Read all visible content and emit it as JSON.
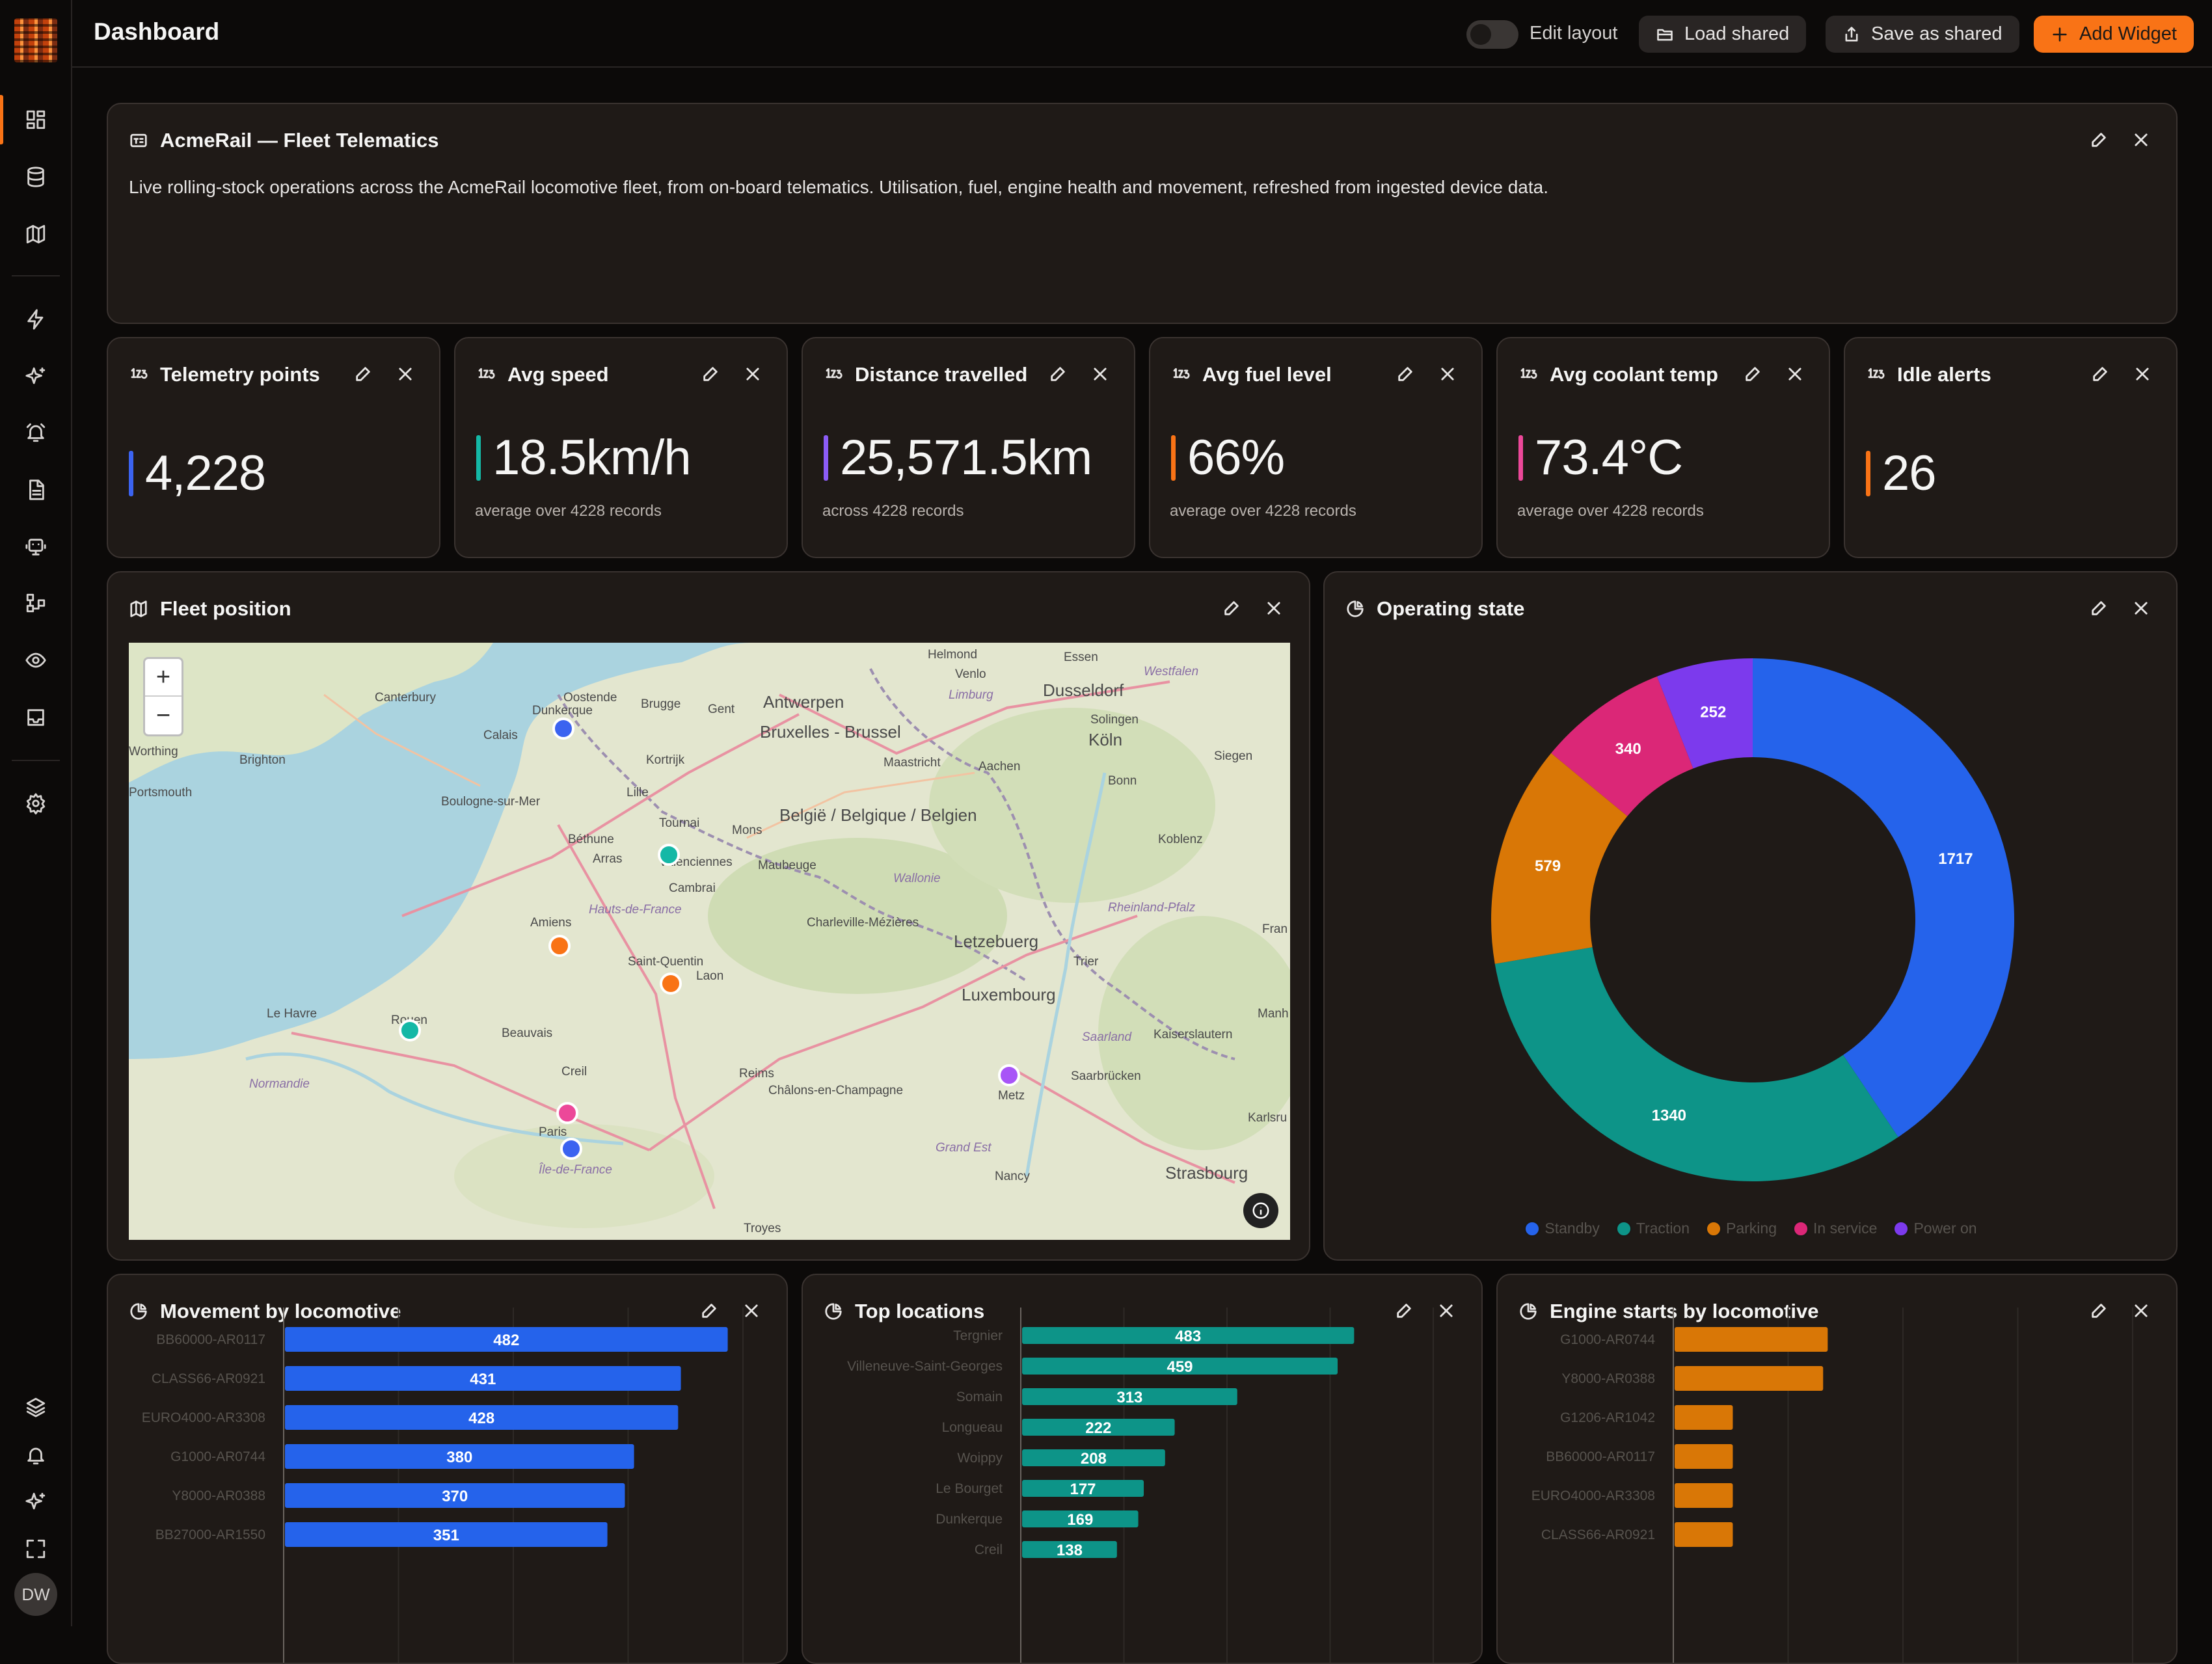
{
  "header": {
    "title": "Dashboard",
    "edit_layout": "Edit layout",
    "load_shared": "Load shared",
    "save_shared": "Save as shared",
    "add_widget": "Add Widget"
  },
  "sidebar": {
    "avatar": "DW",
    "items": [
      "dashboard-icon",
      "database-icon",
      "map-icon",
      "bolt-icon",
      "sparkles-icon",
      "alarm-icon",
      "document-icon",
      "robot-icon",
      "workflow-icon",
      "eye-icon",
      "inbox-icon",
      "gear-icon",
      "layers-icon",
      "bell-icon",
      "sparkles-icon",
      "fullscreen-icon"
    ]
  },
  "intro": {
    "title": "AcmeRail — Fleet Telematics",
    "description": "Live rolling-stock operations across the AcmeRail locomotive fleet, from on-board telematics. Utilisation, fuel, engine health and movement, refreshed from ingested device data."
  },
  "kpis": [
    {
      "title": "Telemetry points",
      "value": "4,228",
      "sub": "",
      "color": "#3b63f0"
    },
    {
      "title": "Avg speed",
      "value": "18.5km/h",
      "sub": "average over 4228 records",
      "color": "#14b8a6"
    },
    {
      "title": "Distance travelled",
      "value": "25,571.5km",
      "sub": "across 4228 records",
      "color": "#8b5cf6"
    },
    {
      "title": "Avg fuel level",
      "value": "66%",
      "sub": "average over 4228 records",
      "color": "#f97316"
    },
    {
      "title": "Avg coolant temp",
      "value": "73.4°C",
      "sub": "average over 4228 records",
      "color": "#ec4899"
    },
    {
      "title": "Idle alerts",
      "value": "26",
      "sub": "",
      "color": "#f97316"
    }
  ],
  "map": {
    "title": "Fleet position",
    "zoom_in": "+",
    "zoom_out": "−",
    "labels": [
      "Canterbury",
      "Oostende",
      "Brugge",
      "Antwerpen",
      "Essen",
      "Dusseldorf",
      "Brighton",
      "Calais",
      "Dunkerque",
      "Gent",
      "Bruxelles - Brussel",
      "Solingen",
      "Köln",
      "Siegen",
      "Boulogne-sur-Mer",
      "Kortrijk",
      "Maastricht",
      "Aachen",
      "Bonn",
      "Lille",
      "Tournai",
      "Mons",
      "België / Belgique / Belgien",
      "Béthune",
      "Arras",
      "Valenciennes",
      "Maubeuge",
      "Wallonie",
      "Koblenz",
      "Cambrai",
      "Hauts-de-France",
      "Amiens",
      "Saint-Quentin",
      "Charleville-Mézières",
      "Letzebuerg",
      "Rheinland-Pfalz",
      "Trier",
      "Laon",
      "Le Havre",
      "Rouen",
      "Luxembourg",
      "Beauvais",
      "Saarland",
      "Kaiserslautern",
      "Creil",
      "Reims",
      "Normandie",
      "Châlons-en-Champagne",
      "Metz",
      "Saarbrücken",
      "Paris",
      "Île-de-France",
      "Grand Est",
      "Nancy",
      "Strasbourg",
      "Troyes",
      "Helmond",
      "Venlo",
      "Limburg",
      "Westfalen",
      "Manh",
      "Karlsru",
      "Fran",
      "Worthing",
      "Portsmouth"
    ],
    "markers": [
      {
        "name": "Dunkerque",
        "color": "#3b63f0"
      },
      {
        "name": "Valenciennes",
        "color": "#14b8a6"
      },
      {
        "name": "Amiens",
        "color": "#f97316"
      },
      {
        "name": "Saint-Quentin",
        "color": "#f97316"
      },
      {
        "name": "Rouen",
        "color": "#14b8a6"
      },
      {
        "name": "Metz",
        "color": "#a855f7"
      },
      {
        "name": "Paris",
        "color": "#ec4899"
      },
      {
        "name": "Paris south",
        "color": "#3b63f0"
      }
    ]
  },
  "operating_state": {
    "title": "Operating state",
    "chart_data": {
      "type": "pie",
      "donut": true,
      "categories": [
        "Standby",
        "Traction",
        "Parking",
        "In service",
        "Power on"
      ],
      "values": [
        1717,
        1340,
        579,
        340,
        252
      ],
      "colors": [
        "#2563eb",
        "#0d9488",
        "#d97706",
        "#db2777",
        "#7c3aed"
      ],
      "legend": "bottom"
    }
  },
  "movement": {
    "title": "Movement by locomotive",
    "chart_data": {
      "type": "bar",
      "orientation": "horizontal",
      "categories": [
        "BB60000-AR0117",
        "CLASS66-AR0921",
        "EURO4000-AR3308",
        "G1000-AR0744",
        "Y8000-AR0388",
        "BB27000-AR1550"
      ],
      "values": [
        482,
        431,
        428,
        380,
        370,
        351
      ],
      "color": "#2563eb",
      "xlim": [
        0,
        500
      ]
    }
  },
  "top_locations": {
    "title": "Top locations",
    "chart_data": {
      "type": "bar",
      "orientation": "horizontal",
      "categories": [
        "Tergnier",
        "Villeneuve-Saint-Georges",
        "Somain",
        "Longueau",
        "Woippy",
        "Le Bourget",
        "Dunkerque",
        "Creil"
      ],
      "values": [
        483,
        459,
        313,
        222,
        208,
        177,
        169,
        138
      ],
      "color": "#0d9488",
      "xlim": [
        0,
        600
      ]
    }
  },
  "engine_starts": {
    "title": "Engine starts by locomotive",
    "chart_data": {
      "type": "bar",
      "orientation": "horizontal",
      "categories": [
        "G1000-AR0744",
        "Y8000-AR0388",
        "G1206-AR1042",
        "BB60000-AR0117",
        "EURO4000-AR3308",
        "CLASS66-AR0921"
      ],
      "values": [
        10,
        9.7,
        3.8,
        3.8,
        3.8,
        3.8
      ],
      "color": "#d97706",
      "xlim": [
        0,
        30
      ]
    }
  }
}
